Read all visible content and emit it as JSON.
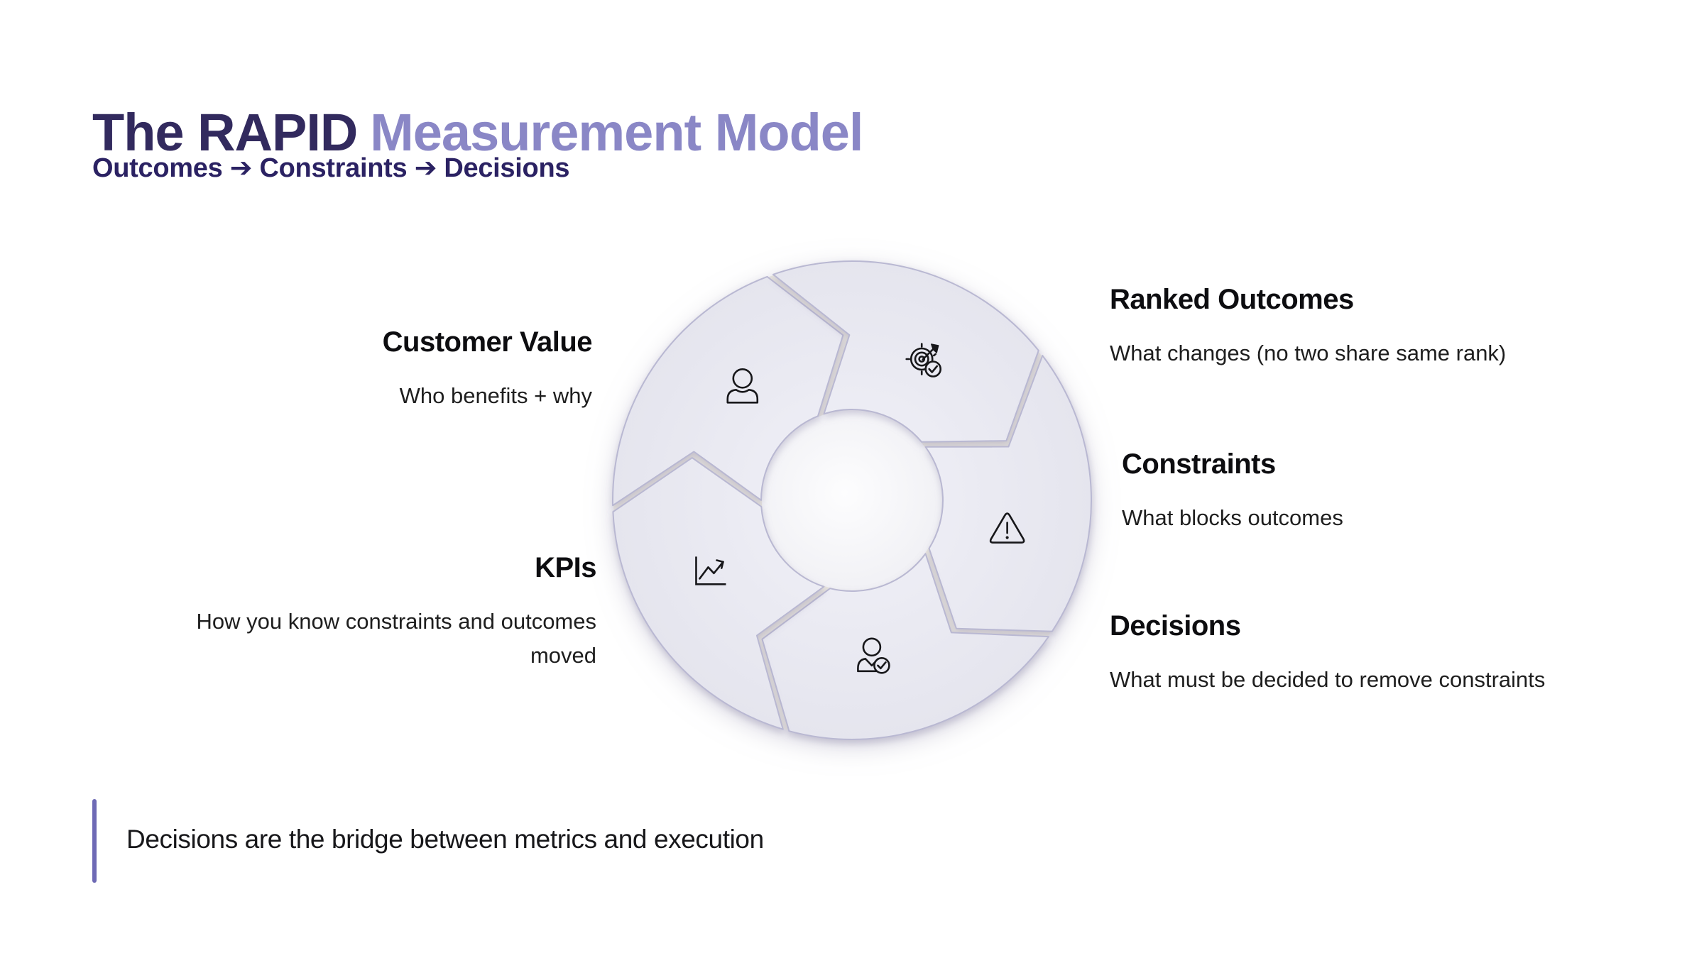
{
  "title": {
    "prefix": "The RAPID",
    "highlight": "Measurement Model"
  },
  "subtitle": "Outcomes ➔ Constraints ➔ Decisions",
  "labels": {
    "customer_value": {
      "title": "Customer Value",
      "description": "Who benefits + why"
    },
    "ranked_outcomes": {
      "title": "Ranked Outcomes",
      "description": "What changes (no two share same rank)"
    },
    "constraints": {
      "title": "Constraints",
      "description": "What blocks outcomes"
    },
    "decisions": {
      "title": "Decisions",
      "description": "What must be decided to remove constraints"
    },
    "kpis": {
      "title": "KPIs",
      "description": "How you know constraints and outcomes moved"
    }
  },
  "diagram": {
    "type": "cycle",
    "segment_count": 5,
    "flow": "clockwise",
    "segments": [
      {
        "id": "customer-value",
        "icon": "person-icon"
      },
      {
        "id": "ranked-outcomes",
        "icon": "target-check-icon"
      },
      {
        "id": "constraints",
        "icon": "warning-icon"
      },
      {
        "id": "decisions",
        "icon": "person-check-icon"
      },
      {
        "id": "kpis",
        "icon": "trend-chart-icon"
      }
    ]
  },
  "footer": {
    "quote": "Decisions are the bridge between metrics and execution"
  },
  "colors": {
    "title_dark": "#322a5e",
    "title_accent": "#8a87c6",
    "subtitle": "#2b2263",
    "heading": "#0d0d10",
    "body": "#1e1e1e",
    "quote_bar": "#6e6ab5",
    "segment_fill": "#e9e9f2",
    "segment_border": "#b9b8d2",
    "gap_band": "#e7e4de",
    "icon_stroke": "#17171a"
  }
}
